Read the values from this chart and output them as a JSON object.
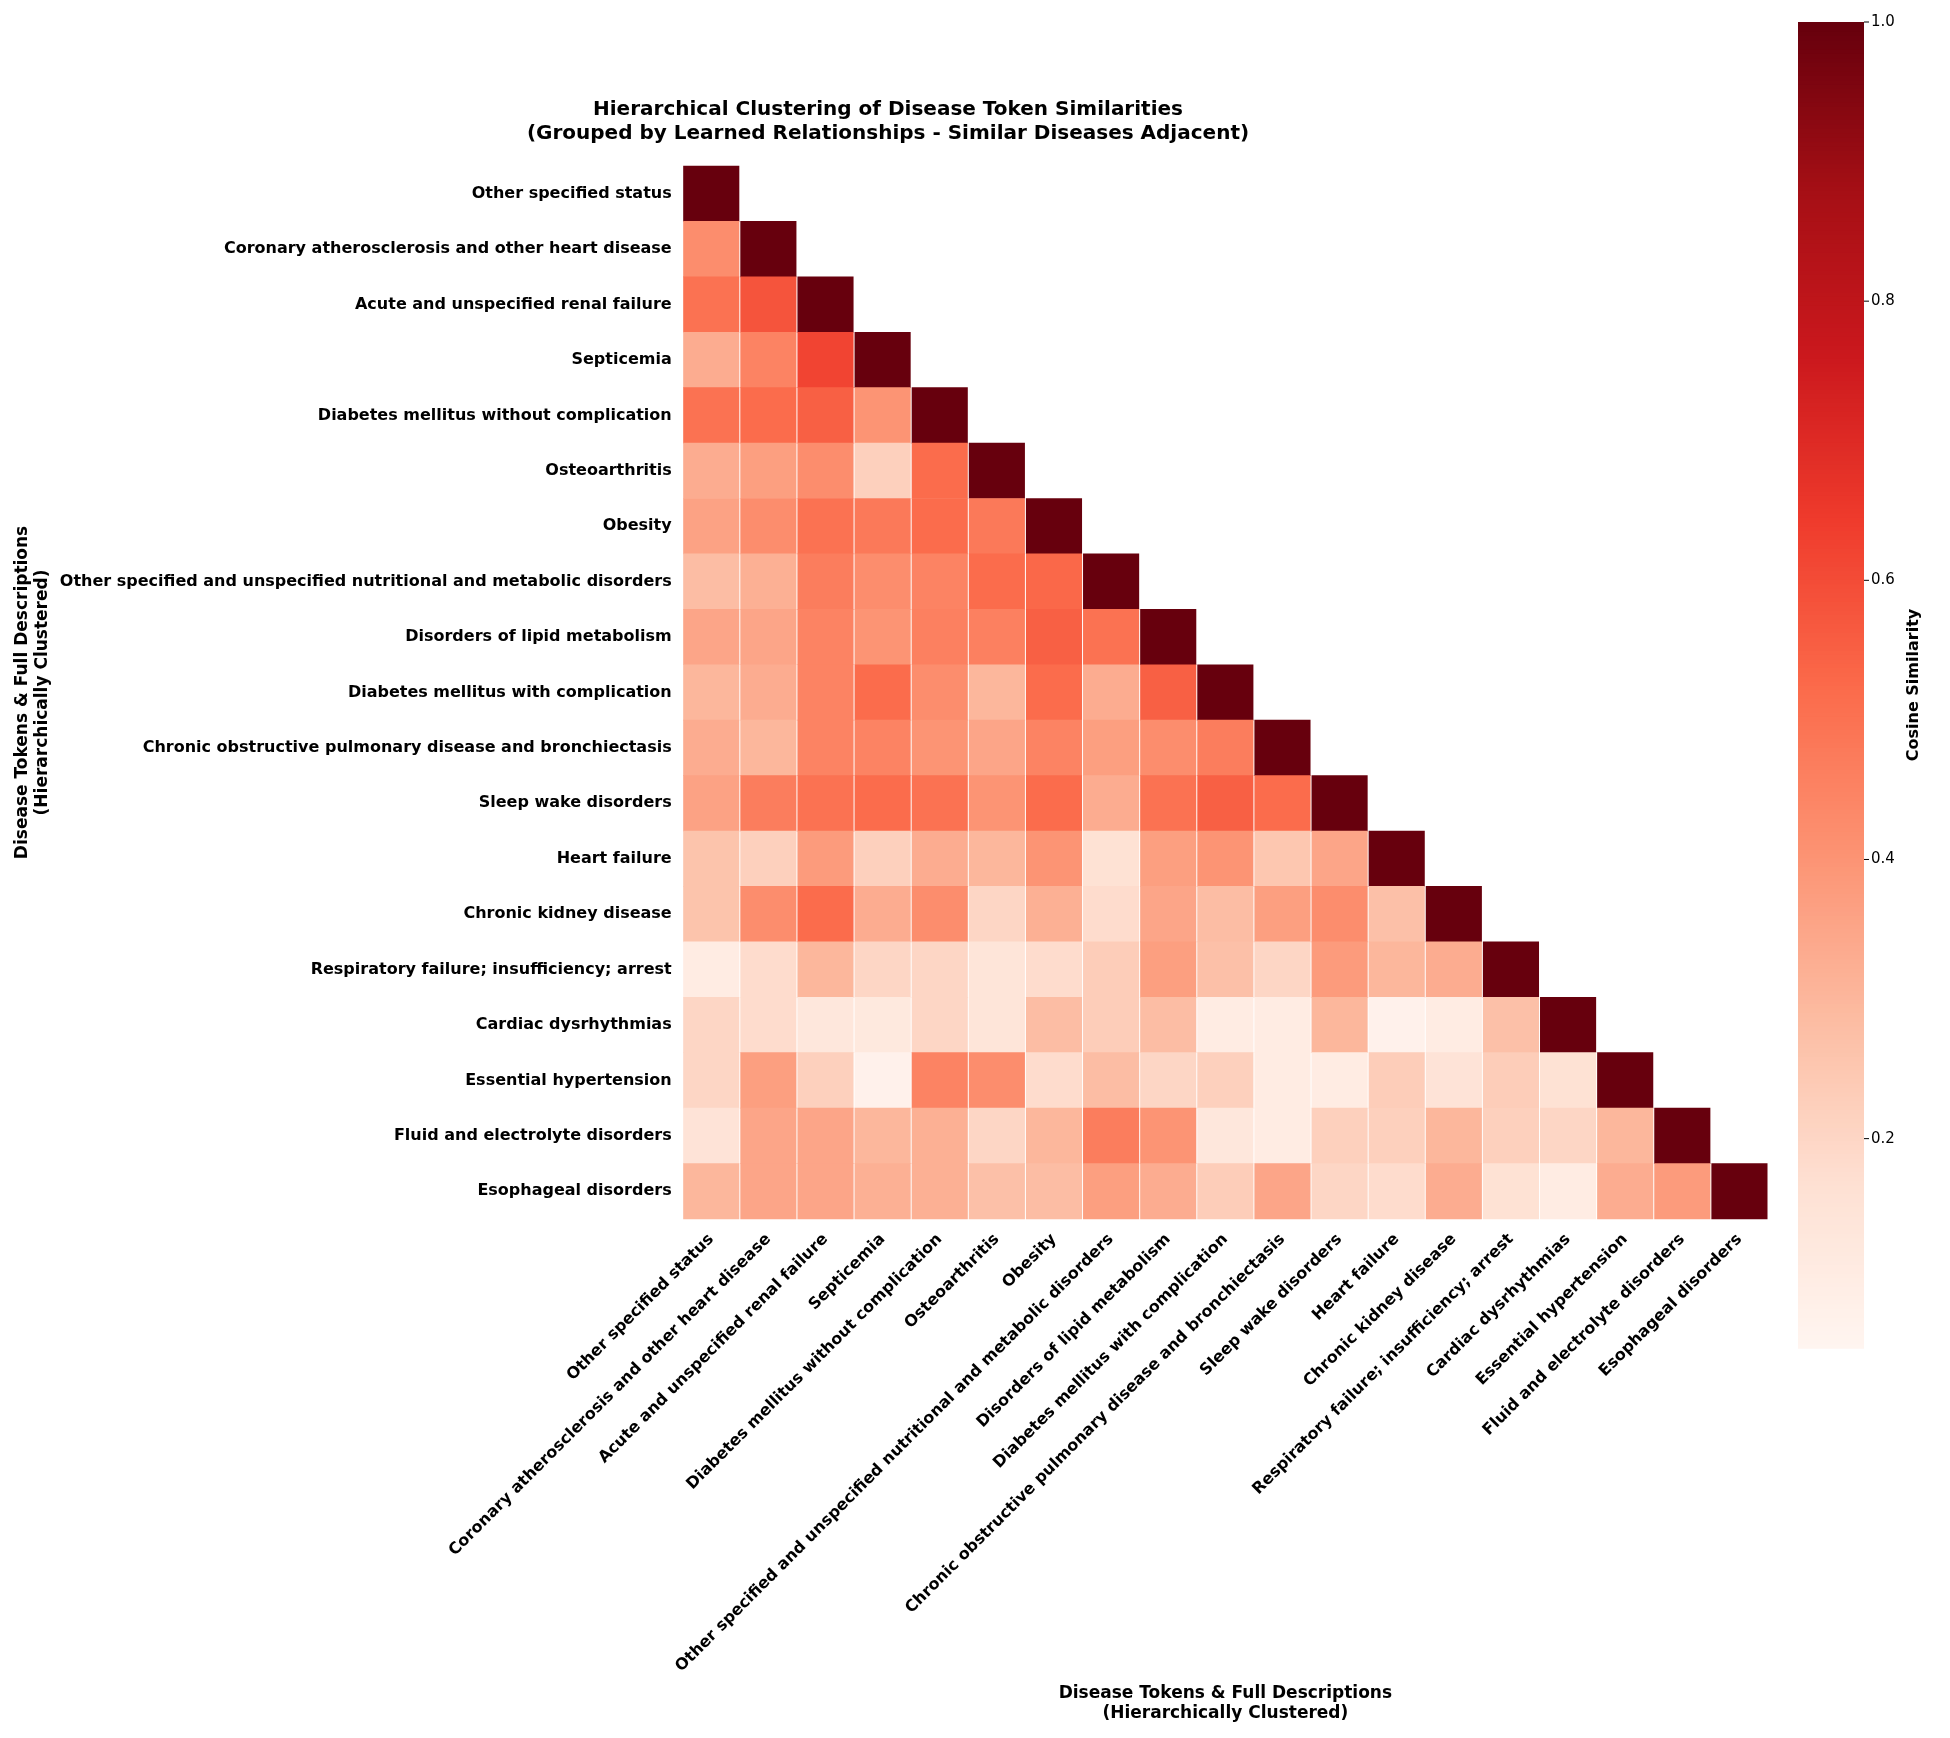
{
  "chart_data": {
    "type": "heatmap",
    "title": "Hierarchical Clustering of Disease Token Similarities\n(Grouped by Learned Relationships - Similar Diseases Adjacent)",
    "xlabel": "Disease Tokens & Full Descriptions\n(Hierarchically Clustered)",
    "ylabel": "Disease Tokens & Full Descriptions\n(Hierarchically Clustered)",
    "clabel": "Cosine Similarity",
    "categories": [
      "Other specified status",
      "Coronary atherosclerosis and other heart disease",
      "Acute and unspecified renal failure",
      "Septicemia",
      "Diabetes mellitus without complication",
      "Osteoarthritis",
      "Obesity",
      "Other specified and unspecified nutritional and metabolic disorders",
      "Disorders of lipid metabolism",
      "Diabetes mellitus with complication",
      "Chronic obstructive pulmonary disease and bronchiectasis",
      "Sleep wake disorders",
      "Heart failure",
      "Chronic kidney disease",
      "Respiratory failure; insufficiency; arrest",
      "Cardiac dysrhythmias",
      "Essential hypertension",
      "Fluid and electrolyte disorders",
      "Esophageal disorders"
    ],
    "y_categories": [
      "Other specified status",
      "Coronary atherosclerosis and other heart disease",
      "Acute and unspecified renal failure",
      "Septicemia",
      "Diabetes mellitus without complication",
      "Osteoarthritis",
      "Obesity",
      "Other specified and unspecified nutritional and metabolic disorders",
      "Disorders of lipid metabolism",
      "Diabetes mellitus with complication",
      "Chronic obstructive pulmonary disease and bronchiectasis",
      "Sleep wake disorders",
      "Heart failure",
      "Chronic kidney disease",
      "Respiratory failure; insufficiency; arrest",
      "Cardiac dysrhythmias",
      "Essential hypertension",
      "Fluid and electrolyte disorders",
      "Esophageal disorders"
    ],
    "cells": [
      [
        1,
        null,
        null,
        null,
        null,
        null,
        null,
        null,
        null,
        null,
        null,
        null,
        null,
        null,
        null,
        null,
        null,
        null,
        null
      ],
      [
        0.42,
        1,
        null,
        null,
        null,
        null,
        null,
        null,
        null,
        null,
        null,
        null,
        null,
        null,
        null,
        null,
        null,
        null,
        null
      ],
      [
        0.5,
        0.58,
        1,
        null,
        null,
        null,
        null,
        null,
        null,
        null,
        null,
        null,
        null,
        null,
        null,
        null,
        null,
        null,
        null
      ],
      [
        0.33,
        0.45,
        0.62,
        1,
        null,
        null,
        null,
        null,
        null,
        null,
        null,
        null,
        null,
        null,
        null,
        null,
        null,
        null,
        null
      ],
      [
        0.5,
        0.52,
        0.55,
        0.4,
        1,
        null,
        null,
        null,
        null,
        null,
        null,
        null,
        null,
        null,
        null,
        null,
        null,
        null,
        null
      ],
      [
        0.33,
        0.37,
        0.42,
        0.22,
        0.52,
        1,
        null,
        null,
        null,
        null,
        null,
        null,
        null,
        null,
        null,
        null,
        null,
        null,
        null
      ],
      [
        0.36,
        0.42,
        0.5,
        0.48,
        0.52,
        0.48,
        1,
        null,
        null,
        null,
        null,
        null,
        null,
        null,
        null,
        null,
        null,
        null,
        null
      ],
      [
        0.28,
        0.32,
        0.47,
        0.42,
        0.45,
        0.52,
        0.53,
        1,
        null,
        null,
        null,
        null,
        null,
        null,
        null,
        null,
        null,
        null,
        null
      ],
      [
        0.35,
        0.35,
        0.45,
        0.4,
        0.46,
        0.46,
        0.55,
        0.5,
        1,
        null,
        null,
        null,
        null,
        null,
        null,
        null,
        null,
        null,
        null
      ],
      [
        0.3,
        0.33,
        0.45,
        0.52,
        0.42,
        0.3,
        0.52,
        0.33,
        0.55,
        1,
        null,
        null,
        null,
        null,
        null,
        null,
        null,
        null,
        null
      ],
      [
        0.33,
        0.3,
        0.45,
        0.45,
        0.4,
        0.35,
        0.45,
        0.37,
        0.42,
        0.47,
        1,
        null,
        null,
        null,
        null,
        null,
        null,
        null,
        null
      ],
      [
        0.36,
        0.47,
        0.5,
        0.52,
        0.5,
        0.4,
        0.52,
        0.33,
        0.5,
        0.55,
        0.52,
        1,
        null,
        null,
        null,
        null,
        null,
        null,
        null
      ],
      [
        0.26,
        0.22,
        0.38,
        0.22,
        0.33,
        0.3,
        0.4,
        0.16,
        0.37,
        0.4,
        0.25,
        0.35,
        1,
        null,
        null,
        null,
        null,
        null,
        null
      ],
      [
        0.26,
        0.42,
        0.52,
        0.33,
        0.42,
        0.2,
        0.32,
        0.18,
        0.35,
        0.28,
        0.37,
        0.42,
        0.27,
        1,
        null,
        null,
        null,
        null,
        null
      ],
      [
        0.1,
        0.18,
        0.3,
        0.2,
        0.2,
        0.14,
        0.18,
        0.23,
        0.37,
        0.27,
        0.2,
        0.38,
        0.3,
        0.33,
        1,
        null,
        null,
        null,
        null
      ],
      [
        0.2,
        0.18,
        0.13,
        0.12,
        0.2,
        0.14,
        0.28,
        0.23,
        0.28,
        0.1,
        0.1,
        0.3,
        0.07,
        0.1,
        0.27,
        1,
        null,
        null,
        null
      ],
      [
        0.2,
        0.37,
        0.22,
        0.07,
        0.45,
        0.42,
        0.18,
        0.28,
        0.2,
        0.22,
        0.1,
        0.1,
        0.23,
        0.15,
        0.23,
        0.16,
        1,
        null,
        null
      ],
      [
        0.15,
        0.35,
        0.35,
        0.3,
        0.32,
        0.2,
        0.3,
        0.47,
        0.4,
        0.13,
        0.1,
        0.22,
        0.22,
        0.3,
        0.22,
        0.2,
        0.3,
        1,
        null
      ],
      [
        0.3,
        0.35,
        0.35,
        0.32,
        0.32,
        0.27,
        0.28,
        0.37,
        0.33,
        0.23,
        0.35,
        0.2,
        0.18,
        0.33,
        0.16,
        0.1,
        0.33,
        0.38,
        1
      ]
    ],
    "clim": [
      0.05,
      1
    ],
    "cticks": [
      0.2,
      0.4,
      0.6,
      0.8,
      {
        "value": 1,
        "label": "1.0"
      }
    ]
  }
}
